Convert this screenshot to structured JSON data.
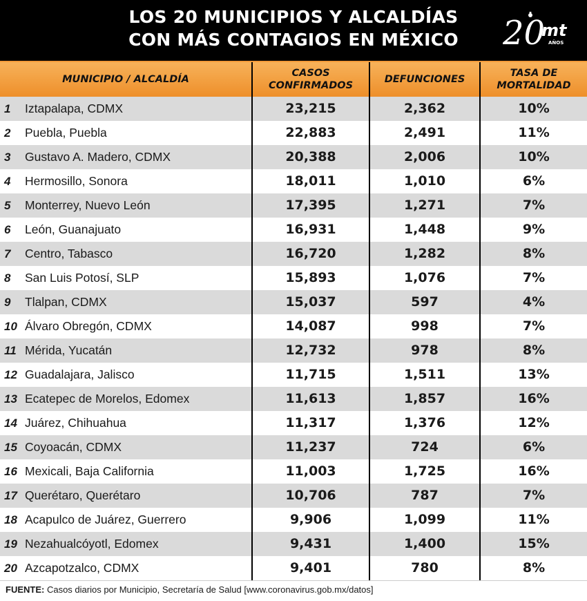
{
  "title": {
    "line1": "LOS 20 MUNICIPIOS Y ALCALDÍAS",
    "line2": "CON MÁS CONTAGIOS EN MÉXICO"
  },
  "logo": {
    "number": "20",
    "letters": "mt",
    "sub": "AÑOS"
  },
  "colors": {
    "header_bg": "#000000",
    "header_band": "#f29a3a",
    "row_alt": "#dadada"
  },
  "columns": {
    "municipio": "MUNICIPIO / ALCALDÍA",
    "casos_l1": "CASOS",
    "casos_l2": "CONFIRMADOS",
    "defunciones": "DEFUNCIONES",
    "tasa_l1": "TASA DE",
    "tasa_l2": "MORTALIDAD"
  },
  "chart_data": {
    "type": "table",
    "columns": [
      "MUNICIPIO / ALCALDÍA",
      "CASOS CONFIRMADOS",
      "DEFUNCIONES",
      "TASA DE MORTALIDAD"
    ],
    "rows": [
      {
        "rank": "1",
        "name": "Iztapalapa, CDMX",
        "cases": "23,215",
        "deaths": "2,362",
        "rate": "10%"
      },
      {
        "rank": "2",
        "name": "Puebla, Puebla",
        "cases": "22,883",
        "deaths": "2,491",
        "rate": "11%"
      },
      {
        "rank": "3",
        "name": "Gustavo A. Madero, CDMX",
        "cases": "20,388",
        "deaths": "2,006",
        "rate": "10%"
      },
      {
        "rank": "4",
        "name": "Hermosillo, Sonora",
        "cases": "18,011",
        "deaths": "1,010",
        "rate": "6%"
      },
      {
        "rank": "5",
        "name": "Monterrey, Nuevo León",
        "cases": "17,395",
        "deaths": "1,271",
        "rate": "7%"
      },
      {
        "rank": "6",
        "name": "León, Guanajuato",
        "cases": "16,931",
        "deaths": "1,448",
        "rate": "9%"
      },
      {
        "rank": "7",
        "name": "Centro, Tabasco",
        "cases": "16,720",
        "deaths": "1,282",
        "rate": "8%"
      },
      {
        "rank": "8",
        "name": "San Luis Potosí, SLP",
        "cases": "15,893",
        "deaths": "1,076",
        "rate": "7%"
      },
      {
        "rank": "9",
        "name": "Tlalpan, CDMX",
        "cases": "15,037",
        "deaths": "597",
        "rate": "4%"
      },
      {
        "rank": "10",
        "name": "Álvaro Obregón, CDMX",
        "cases": "14,087",
        "deaths": "998",
        "rate": "7%"
      },
      {
        "rank": "11",
        "name": "Mérida, Yucatán",
        "cases": "12,732",
        "deaths": "978",
        "rate": "8%"
      },
      {
        "rank": "12",
        "name": "Guadalajara, Jalisco",
        "cases": "11,715",
        "deaths": "1,511",
        "rate": "13%"
      },
      {
        "rank": "13",
        "name": "Ecatepec de Morelos, Edomex",
        "cases": "11,613",
        "deaths": "1,857",
        "rate": "16%"
      },
      {
        "rank": "14",
        "name": "Juárez, Chihuahua",
        "cases": "11,317",
        "deaths": "1,376",
        "rate": "12%"
      },
      {
        "rank": "15",
        "name": "Coyoacán, CDMX",
        "cases": "11,237",
        "deaths": "724",
        "rate": "6%"
      },
      {
        "rank": "16",
        "name": "Mexicali, Baja California",
        "cases": "11,003",
        "deaths": "1,725",
        "rate": "16%"
      },
      {
        "rank": "17",
        "name": "Querétaro, Querétaro",
        "cases": "10,706",
        "deaths": "787",
        "rate": "7%"
      },
      {
        "rank": "18",
        "name": "Acapulco de Juárez, Guerrero",
        "cases": "9,906",
        "deaths": "1,099",
        "rate": "11%"
      },
      {
        "rank": "19",
        "name": "Nezahualcóyotl, Edomex",
        "cases": "9,431",
        "deaths": "1,400",
        "rate": "15%"
      },
      {
        "rank": "20",
        "name": "Azcapotzalco, CDMX",
        "cases": "9,401",
        "deaths": "780",
        "rate": "8%"
      }
    ]
  },
  "source": {
    "label": "FUENTE:",
    "text": " Casos diarios por Municipio, Secretaría de Salud [www.coronavirus.gob.mx/datos]"
  }
}
